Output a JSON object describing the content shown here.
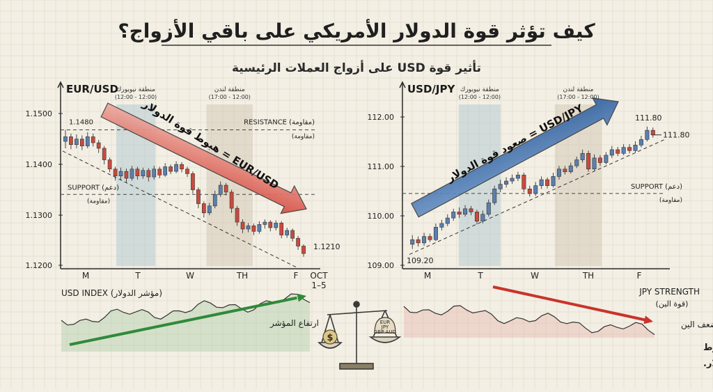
{
  "title": "كيف تؤثر قوة الدولار الأمريكي على باقي الأزواج؟",
  "subtitle": "تأثير قوة USD على أزواج العملات الرئيسية",
  "colors": {
    "up": "#5b7fae",
    "down": "#c94a3e",
    "ink": "#2a2a2a",
    "ny_zone": "#a9c3cf",
    "london_zone": "#cfc2ad"
  },
  "chart_data": [
    {
      "type": "candlestick",
      "title": "EUR/USD",
      "x_ticks": [
        "M",
        "T",
        "W",
        "TH",
        "F"
      ],
      "date_label": [
        "OCT",
        "1–5"
      ],
      "y_ticks": [
        "1.1500",
        "1.1400",
        "1.1300",
        "1.1200"
      ],
      "ylim": [
        1.1185,
        1.1535
      ],
      "zones": [
        {
          "label": "منطقة نيويورك",
          "time": "(12:00 - 12:00)",
          "from": 1.1,
          "to": 1.9
        },
        {
          "label": "منطقة لندن",
          "time": "(17:00 - 12:00)",
          "from": 2.95,
          "to": 3.9
        }
      ],
      "resistance": {
        "value": 1.148,
        "label": "RESISTANCE (مقاومة)",
        "sub": "(مقاومة)"
      },
      "support": {
        "value": 1.134,
        "label": "SUPPORT (دعم)",
        "sub": "(مقاومة)"
      },
      "start_label": "1.1480",
      "end_label": "1.1210",
      "arrow_label": "EUR/USD = هبوط قوة الدولار",
      "direction": "down",
      "candles": [
        [
          1.1455,
          1.1465,
          1.148,
          1.144
        ],
        [
          1.1465,
          1.1448,
          1.1472,
          1.1438
        ],
        [
          1.1448,
          1.146,
          1.147,
          1.144
        ],
        [
          1.146,
          1.1445,
          1.1468,
          1.1436
        ],
        [
          1.1445,
          1.1465,
          1.1475,
          1.144
        ],
        [
          1.1465,
          1.1452,
          1.1472,
          1.1444
        ],
        [
          1.1452,
          1.144,
          1.1458,
          1.143
        ],
        [
          1.144,
          1.1415,
          1.1445,
          1.1405
        ],
        [
          1.1415,
          1.1395,
          1.142,
          1.1388
        ],
        [
          1.1395,
          1.138,
          1.14,
          1.137
        ],
        [
          1.138,
          1.139,
          1.1398,
          1.1372
        ],
        [
          1.139,
          1.1375,
          1.1396,
          1.1366
        ],
        [
          1.1375,
          1.1395,
          1.1402,
          1.137
        ],
        [
          1.1395,
          1.138,
          1.14,
          1.1372
        ],
        [
          1.138,
          1.1392,
          1.1398,
          1.1374
        ],
        [
          1.1392,
          1.1378,
          1.1397,
          1.1368
        ],
        [
          1.1378,
          1.1395,
          1.1402,
          1.1372
        ],
        [
          1.1395,
          1.1382,
          1.14,
          1.1375
        ],
        [
          1.1382,
          1.14,
          1.1408,
          1.1378
        ],
        [
          1.14,
          1.139,
          1.1405,
          1.1384
        ],
        [
          1.139,
          1.1405,
          1.1412,
          1.1386
        ],
        [
          1.1405,
          1.1395,
          1.141,
          1.1388
        ],
        [
          1.1395,
          1.1385,
          1.14,
          1.1378
        ],
        [
          1.1385,
          1.135,
          1.139,
          1.1342
        ],
        [
          1.135,
          1.132,
          1.1355,
          1.131
        ],
        [
          1.132,
          1.13,
          1.1325,
          1.129
        ],
        [
          1.13,
          1.1315,
          1.1322,
          1.1295
        ],
        [
          1.1315,
          1.134,
          1.1348,
          1.131
        ],
        [
          1.134,
          1.136,
          1.1368,
          1.1335
        ],
        [
          1.136,
          1.1345,
          1.1365,
          1.1338
        ],
        [
          1.1345,
          1.131,
          1.135,
          1.13
        ],
        [
          1.131,
          1.128,
          1.1315,
          1.1272
        ],
        [
          1.128,
          1.1265,
          1.1286,
          1.1256
        ],
        [
          1.1265,
          1.1272,
          1.1278,
          1.1258
        ],
        [
          1.1272,
          1.126,
          1.1277,
          1.1252
        ],
        [
          1.126,
          1.1275,
          1.1282,
          1.1255
        ],
        [
          1.1275,
          1.128,
          1.1286,
          1.1266
        ],
        [
          1.128,
          1.1268,
          1.1284,
          1.126
        ],
        [
          1.1268,
          1.1278,
          1.1284,
          1.1262
        ],
        [
          1.1278,
          1.1252,
          1.1282,
          1.1245
        ],
        [
          1.1252,
          1.1262,
          1.1268,
          1.1246
        ],
        [
          1.1262,
          1.1245,
          1.1266,
          1.1238
        ],
        [
          1.1245,
          1.1228,
          1.125,
          1.122
        ],
        [
          1.1228,
          1.1212,
          1.1232,
          1.1205
        ]
      ],
      "index": {
        "label": "USD INDEX (مؤشر الدولار)",
        "arrow_label": "ارتفاع المؤشر",
        "direction": "up"
      }
    },
    {
      "type": "candlestick",
      "title": "USD/JPY",
      "x_ticks": [
        "M",
        "T",
        "W",
        "TH",
        "F"
      ],
      "y_ticks": [
        "112.00",
        "111.00",
        "110.00",
        "109.00"
      ],
      "ylim": [
        108.88,
        112.38
      ],
      "zones": [
        {
          "label": "منطقة نيويورك",
          "time": "(12:00 - 12:00)",
          "from": 1.0,
          "to": 1.85
        },
        {
          "label": "منطقة لندن",
          "time": "(17:00 - 12:00)",
          "from": 2.95,
          "to": 3.9
        }
      ],
      "support": {
        "value": 110.45,
        "label": "SUPPORT (دعم)",
        "sub": "(مقاومة)"
      },
      "start_label": "109.20",
      "end_label": "111.80",
      "peak_label": "111.80",
      "arrow_label": "USD/JPY = صعود قوة الدولار",
      "direction": "up",
      "candles": [
        [
          109.35,
          109.45,
          109.55,
          109.25
        ],
        [
          109.45,
          109.38,
          109.52,
          109.3
        ],
        [
          109.38,
          109.52,
          109.6,
          109.32
        ],
        [
          109.52,
          109.45,
          109.58,
          109.4
        ],
        [
          109.45,
          109.72,
          109.8,
          109.42
        ],
        [
          109.72,
          109.8,
          109.88,
          109.65
        ],
        [
          109.8,
          109.92,
          110.0,
          109.74
        ],
        [
          109.92,
          110.05,
          110.12,
          109.86
        ],
        [
          110.05,
          110.0,
          110.15,
          109.92
        ],
        [
          110.0,
          110.12,
          110.2,
          109.95
        ],
        [
          110.12,
          110.05,
          110.18,
          109.98
        ],
        [
          110.05,
          109.85,
          110.1,
          109.78
        ],
        [
          109.85,
          110.0,
          110.08,
          109.8
        ],
        [
          110.0,
          110.25,
          110.32,
          109.95
        ],
        [
          110.25,
          110.55,
          110.62,
          110.2
        ],
        [
          110.55,
          110.65,
          110.75,
          110.48
        ],
        [
          110.65,
          110.72,
          110.8,
          110.58
        ],
        [
          110.72,
          110.78,
          110.86,
          110.66
        ],
        [
          110.78,
          110.85,
          110.92,
          110.72
        ],
        [
          110.85,
          110.55,
          110.9,
          110.48
        ],
        [
          110.55,
          110.45,
          110.62,
          110.38
        ],
        [
          110.45,
          110.62,
          110.7,
          110.4
        ],
        [
          110.62,
          110.75,
          110.82,
          110.55
        ],
        [
          110.75,
          110.62,
          110.8,
          110.56
        ],
        [
          110.62,
          110.82,
          110.9,
          110.58
        ],
        [
          110.82,
          110.98,
          111.05,
          110.75
        ],
        [
          110.98,
          110.92,
          111.05,
          110.86
        ],
        [
          110.92,
          111.05,
          111.12,
          110.88
        ],
        [
          111.05,
          111.18,
          111.25,
          111.0
        ],
        [
          111.18,
          111.32,
          111.4,
          111.12
        ],
        [
          111.32,
          110.98,
          111.38,
          110.92
        ],
        [
          110.98,
          111.22,
          111.3,
          110.95
        ],
        [
          111.22,
          111.12,
          111.28,
          111.05
        ],
        [
          111.12,
          111.28,
          111.35,
          111.08
        ],
        [
          111.28,
          111.4,
          111.48,
          111.22
        ],
        [
          111.4,
          111.32,
          111.46,
          111.26
        ],
        [
          111.32,
          111.45,
          111.52,
          111.28
        ],
        [
          111.45,
          111.38,
          111.52,
          111.32
        ],
        [
          111.38,
          111.5,
          111.58,
          111.34
        ],
        [
          111.5,
          111.62,
          111.7,
          111.45
        ],
        [
          111.62,
          111.82,
          111.9,
          111.58
        ],
        [
          111.82,
          111.72,
          111.88,
          111.66
        ]
      ],
      "index": {
        "label": "JPY STRENGTH",
        "sub": "(قوة الين)",
        "arrow_label": "ضعف الين",
        "direction": "down"
      }
    }
  ],
  "scale": {
    "left": "$",
    "right": [
      "EUR",
      "JPY",
      "GBP AUD"
    ]
  },
  "footer": {
    "line1": "الدولار الأمريكي القوي يدفع الأزواج الرئيسية في الاتجاه المعاكس لهبوط",
    "line2": "العملات الأخرى، ويدفع الأزواج الدولارية في الاتجاه الصاعد لارتفاع الدولار."
  }
}
